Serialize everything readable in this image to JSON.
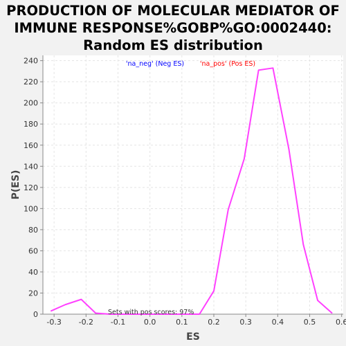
{
  "chart_data": {
    "type": "line",
    "title_lines": [
      "PRODUCTION OF MOLECULAR MEDIATOR OF",
      "IMMUNE RESPONSE%GOBP%GO:0002440:",
      "Random ES distribution"
    ],
    "xlabel": "ES",
    "ylabel": "P(ES)",
    "xlim": [
      -0.335,
      0.605
    ],
    "ylim": [
      0,
      245
    ],
    "x_ticks": [
      -0.3,
      -0.2,
      -0.1,
      0.0,
      0.1,
      0.2,
      0.3,
      0.4,
      0.5,
      0.6
    ],
    "x_tick_labels": [
      "-0.3",
      "-0.2",
      "-0.1",
      "0.0",
      "0.1",
      "0.2",
      "0.3",
      "0.4",
      "0.5",
      "0.6"
    ],
    "y_ticks": [
      0,
      20,
      40,
      60,
      80,
      100,
      120,
      140,
      160,
      180,
      200,
      220,
      240
    ],
    "y_tick_labels": [
      "0",
      "20",
      "40",
      "60",
      "80",
      "100",
      "120",
      "140",
      "160",
      "180",
      "200",
      "220",
      "240"
    ],
    "grid": true,
    "legend": [
      {
        "label": "'na_neg' (Neg ES)",
        "color": "#0000ff"
      },
      {
        "label": "'na_pos' (Pos ES)",
        "color": "#ff0000"
      }
    ],
    "annotation": "Sets with pos scores: 97%",
    "series": [
      {
        "color": "#ff40ff",
        "x": [
          -0.31,
          -0.265,
          -0.215,
          -0.17,
          -0.125,
          -0.08,
          -0.035,
          0.01,
          0.055,
          0.1,
          0.155,
          0.2,
          0.245,
          0.295,
          0.34,
          0.385,
          0.435,
          0.48,
          0.525,
          0.57
        ],
        "y": [
          3,
          9,
          14,
          1,
          0,
          0,
          0,
          0,
          0,
          0,
          0,
          22,
          99,
          147,
          231,
          233,
          156,
          66,
          13,
          1
        ]
      }
    ]
  }
}
